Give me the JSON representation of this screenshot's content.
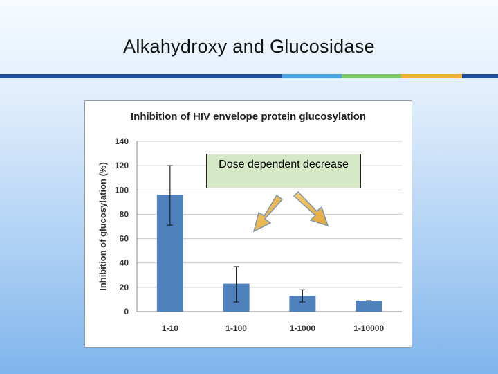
{
  "slide": {
    "title": "Alkahydroxy and Glucosidase",
    "stripe_colors": [
      "#1f4e9c",
      "#4aa3df",
      "#7cc86b",
      "#f0b232",
      "#1f4e9c"
    ]
  },
  "callout": {
    "text": "Dose dependent decrease"
  },
  "chart_data": {
    "type": "bar",
    "title": "Inhibition of HIV envelope protein glucosylation",
    "xlabel": "",
    "ylabel": "Inhibition of glucosylation (%)",
    "categories": [
      "1-10",
      "1-100",
      "1-1000",
      "1-10000"
    ],
    "values": [
      96,
      23,
      13,
      9
    ],
    "error_low": [
      71,
      8,
      8,
      9
    ],
    "error_high": [
      120,
      37,
      18,
      9
    ],
    "ylim": [
      0,
      140
    ],
    "yticks": [
      0,
      20,
      40,
      60,
      80,
      100,
      120,
      140
    ],
    "grid": true,
    "bar_color": "#4f81bd"
  }
}
